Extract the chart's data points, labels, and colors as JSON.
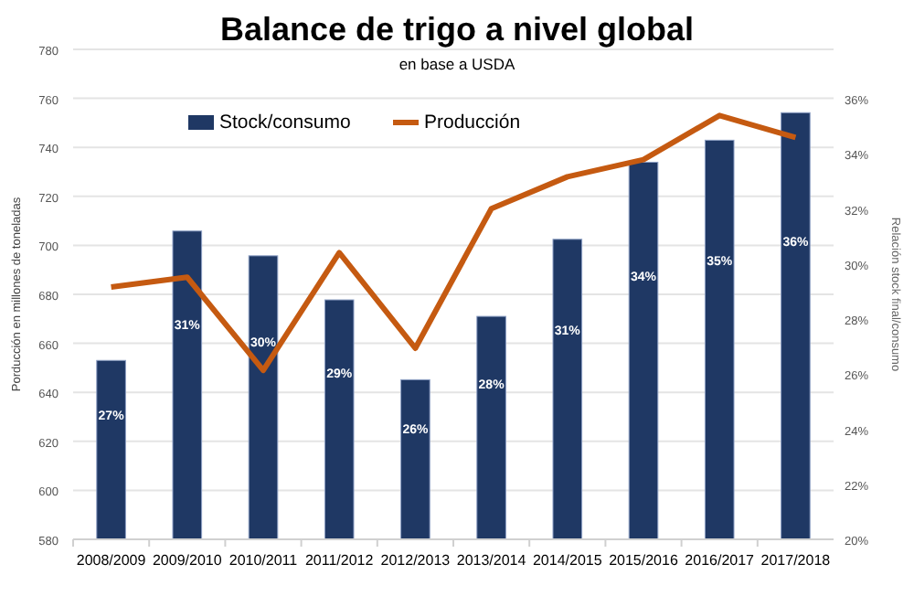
{
  "chart_data": {
    "type": "bar",
    "title": "Balance de trigo a nivel global",
    "subtitle": "en base a USDA",
    "ylabel": "Porducción en millones de toneladas",
    "y2label": "Relación stock final/consumo",
    "categories": [
      "2008/2009",
      "2009/2010",
      "2010/2011",
      "2011/2012",
      "2012/2013",
      "2013/2014",
      "2014/2015",
      "2015/2016",
      "2016/2017",
      "2017/2018"
    ],
    "series": [
      {
        "name": "Stock/consumo",
        "axis": "y2",
        "color": "#1f3864",
        "values": [
          26.5,
          31.2,
          30.3,
          28.7,
          25.8,
          28.1,
          30.9,
          33.7,
          34.5,
          35.5
        ],
        "value_labels": [
          "27%",
          "31%",
          "30%",
          "29%",
          "26%",
          "28%",
          "31%",
          "34%",
          "35%",
          "36%"
        ]
      },
      {
        "name": "Producción",
        "type": "line",
        "color": "#c55a11",
        "values": [
          683,
          687,
          649,
          697,
          658,
          715,
          728,
          735,
          753,
          744
        ]
      }
    ],
    "ylim": [
      580,
      780
    ],
    "yticks": [
      580,
      600,
      620,
      640,
      660,
      680,
      700,
      720,
      740,
      760,
      780
    ],
    "y2lim": [
      20,
      37.8
    ],
    "y2ticks": [
      {
        "value": 20,
        "label": "20%"
      },
      {
        "value": 22,
        "label": "22%"
      },
      {
        "value": 24,
        "label": "24%"
      },
      {
        "value": 26,
        "label": "26%"
      },
      {
        "value": 28,
        "label": "28%"
      },
      {
        "value": 30,
        "label": "30%"
      },
      {
        "value": 32,
        "label": "32%"
      },
      {
        "value": 34,
        "label": "34%"
      },
      {
        "value": 36,
        "label": "36%"
      }
    ],
    "grid": "y",
    "legend": "top"
  }
}
